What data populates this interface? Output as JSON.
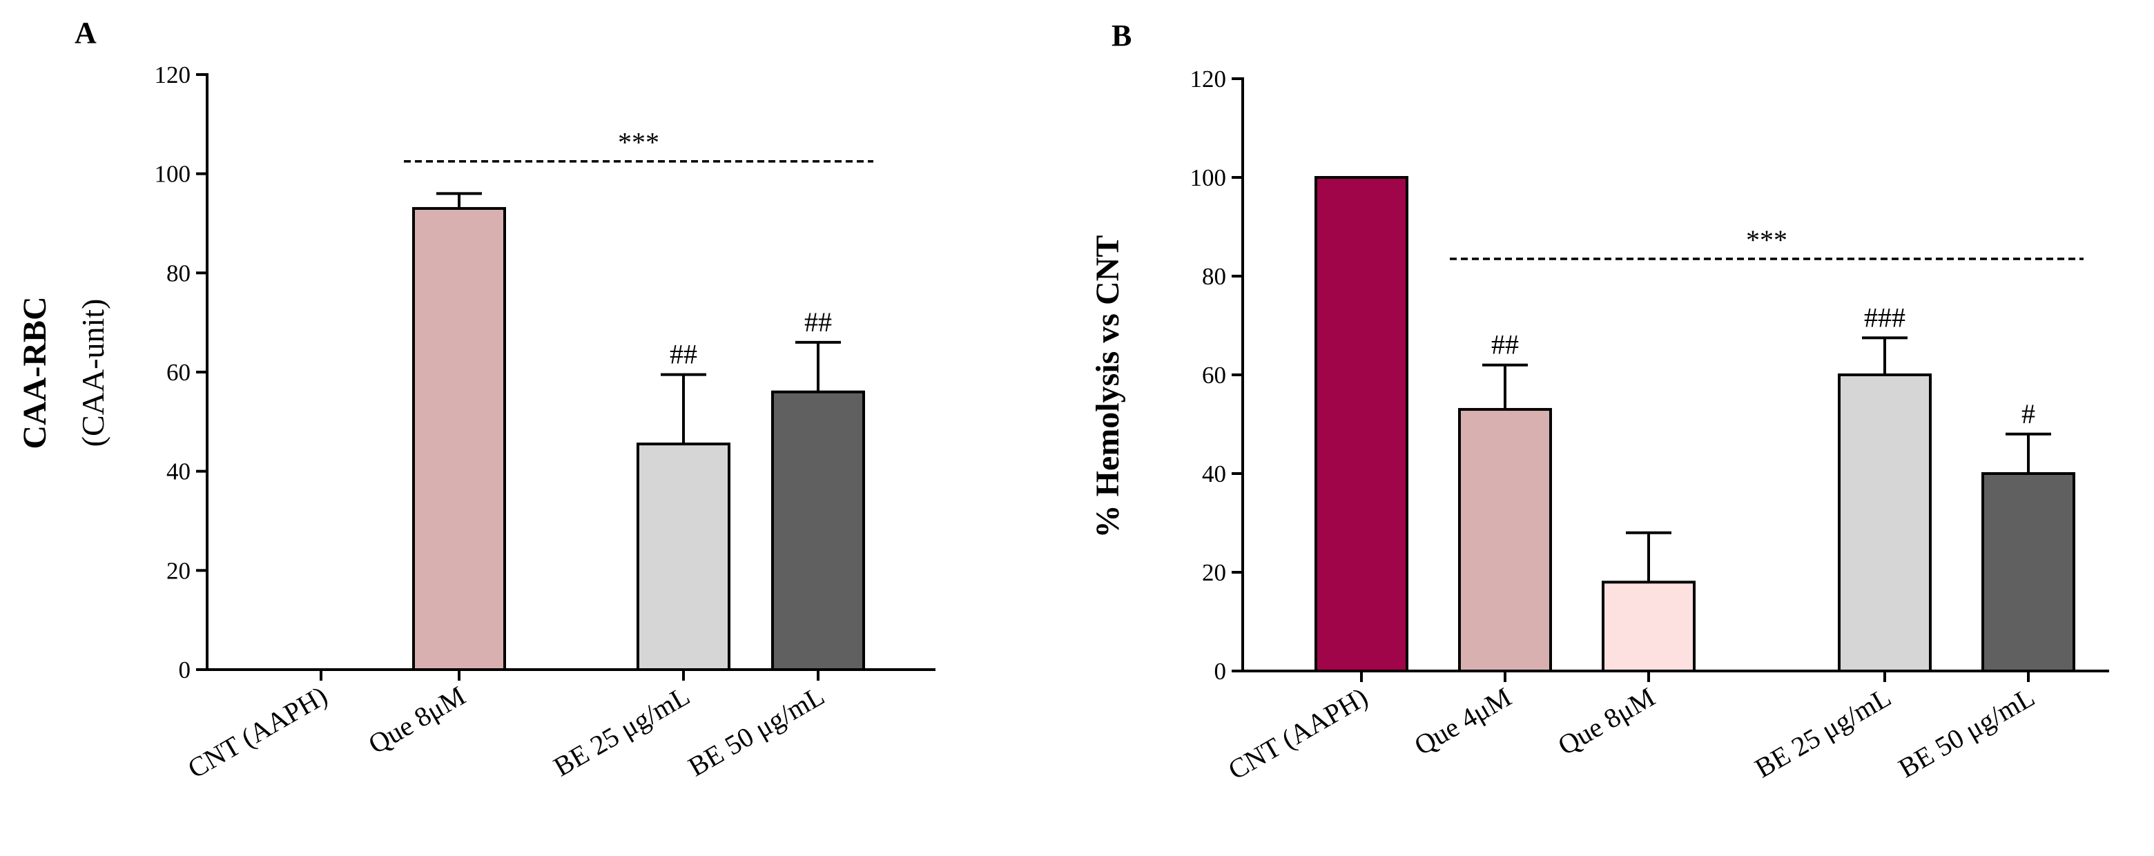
{
  "chart_data": [
    {
      "type": "bar",
      "panel": "A",
      "ylabel_main": "CAA-RBC",
      "ylabel_sub": "(CAA-unit)",
      "ylim": [
        0,
        120
      ],
      "yticks": [
        "0",
        "20",
        "40",
        "60",
        "80",
        "100",
        "120"
      ],
      "categories": [
        "CNT (AAPH)",
        "Que 8μM",
        "BE 25 μg/mL",
        "BE 50 μg/mL"
      ],
      "values": [
        0,
        93,
        45.5,
        56
      ],
      "errors": [
        0,
        3,
        14,
        10
      ],
      "colors": [
        "#ffffff",
        "#d9b0b0",
        "#d6d6d6",
        "#606060"
      ],
      "markers": [
        "",
        "",
        "##",
        "##"
      ],
      "significance": {
        "label": "***",
        "from": "Que 8μM",
        "to": "BE 50 μg/mL",
        "y": 102.5
      }
    },
    {
      "type": "bar",
      "panel": "B",
      "ylabel_main": "% Hemolysis vs CNT",
      "ylim": [
        0,
        120
      ],
      "yticks": [
        "0",
        "20",
        "40",
        "60",
        "80",
        "100",
        "120"
      ],
      "categories": [
        "CNT (AAPH)",
        "Que 4μM",
        "Que 8μM",
        "BE 25 μg/mL",
        "BE 50 μg/mL"
      ],
      "values": [
        100,
        53,
        18,
        60,
        40
      ],
      "errors": [
        0,
        9,
        10,
        7.5,
        8
      ],
      "colors": [
        "#a0054a",
        "#d9b0b0",
        "#fde0e0",
        "#d6d6d6",
        "#606060"
      ],
      "markers": [
        "",
        "##",
        "",
        "###",
        "#"
      ],
      "significance": {
        "label": "***",
        "from": "Que 4μM",
        "to": "BE 50 μg/mL",
        "y": 83.5
      }
    }
  ]
}
